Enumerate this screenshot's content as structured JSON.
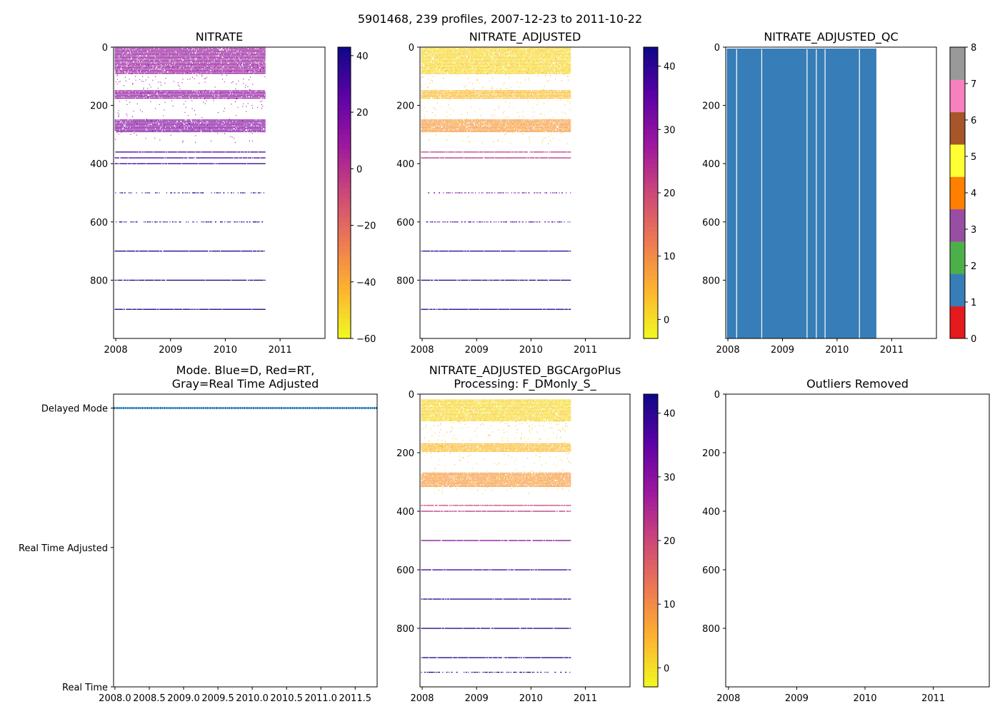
{
  "suptitle": "5901468, 239 profiles, 2007-12-23 to 2011-10-22",
  "colors": {
    "qc_blue": "#377eb8",
    "mode_line": "#1f77b4",
    "qc_palette": [
      "#e41a1c",
      "#377eb8",
      "#4daf4a",
      "#984ea3",
      "#ff7f00",
      "#ffff33",
      "#a65628",
      "#f781bf",
      "#999999"
    ],
    "cmap_plasma_r": [
      "#f0f921",
      "#fdb42f",
      "#ed7953",
      "#cc4778",
      "#9c179e",
      "#5c01a6",
      "#0d0887"
    ]
  },
  "chart_data": [
    {
      "id": "nitrate",
      "type": "heatmap",
      "title": "NITRATE",
      "x_ticks": [
        "2008",
        "2009",
        "2010",
        "2011"
      ],
      "x_tick_values": [
        2008,
        2009,
        2010,
        2011
      ],
      "xlim": [
        2007.96,
        2011.82
      ],
      "ylim": [
        1000,
        0
      ],
      "y_ticks": [
        "0",
        "200",
        "400",
        "600",
        "800"
      ],
      "y_tick_values": [
        0,
        200,
        400,
        600,
        800
      ],
      "data_x_range": [
        2007.98,
        2010.72
      ],
      "colorbar": {
        "label_ticks": [
          "40",
          "20",
          "0",
          "−20",
          "−40",
          "−60"
        ],
        "tick_values": [
          40,
          20,
          0,
          -20,
          -40,
          -60
        ],
        "range": [
          -60,
          43
        ],
        "cmap": "plasma_r"
      },
      "depth_bands": [
        {
          "depths": [
            0,
            5,
            10,
            15,
            20,
            25,
            30,
            35,
            40,
            45,
            50,
            55,
            60,
            65,
            70,
            75,
            80,
            85,
            90
          ],
          "value": 10,
          "jitter": 8
        },
        {
          "depths": [
            150,
            155,
            160,
            165,
            170,
            175
          ],
          "value": 12,
          "jitter": 4
        },
        {
          "depths": [
            250,
            255,
            260,
            265,
            270,
            275,
            280,
            285,
            290
          ],
          "value": 15,
          "jitter": 4
        },
        {
          "depths": [
            360
          ],
          "value": 30,
          "jitter": 3
        },
        {
          "depths": [
            380
          ],
          "value": 32,
          "jitter": 3
        },
        {
          "depths": [
            400
          ],
          "value": 35,
          "jitter": 2
        },
        {
          "depths": [
            500
          ],
          "value": 40,
          "jitter": 1,
          "sparse": true
        },
        {
          "depths": [
            600
          ],
          "value": 41,
          "jitter": 1,
          "sparse": true
        },
        {
          "depths": [
            700
          ],
          "value": 42,
          "jitter": 1
        },
        {
          "depths": [
            800
          ],
          "value": 42,
          "jitter": 1
        },
        {
          "depths": [
            900
          ],
          "value": 43,
          "jitter": 1
        }
      ],
      "scatter": {
        "count": 300,
        "depth_range": [
          60,
          330
        ],
        "value": 10
      }
    },
    {
      "id": "nitrate_adjusted",
      "type": "heatmap",
      "title": "NITRATE_ADJUSTED",
      "x_ticks": [
        "2008",
        "2009",
        "2010",
        "2011"
      ],
      "x_tick_values": [
        2008,
        2009,
        2010,
        2011
      ],
      "xlim": [
        2007.96,
        2011.82
      ],
      "ylim": [
        1000,
        0
      ],
      "y_ticks": [
        "0",
        "200",
        "400",
        "600",
        "800"
      ],
      "y_tick_values": [
        0,
        200,
        400,
        600,
        800
      ],
      "data_x_range": [
        2007.98,
        2010.72
      ],
      "colorbar": {
        "label_ticks": [
          "40",
          "30",
          "20",
          "10",
          "0"
        ],
        "tick_values": [
          40,
          30,
          20,
          10,
          0
        ],
        "range": [
          -3,
          43
        ],
        "cmap": "plasma_r"
      },
      "depth_bands": [
        {
          "depths": [
            0,
            5,
            10,
            15,
            20,
            25,
            30,
            35,
            40,
            45,
            50,
            55,
            60,
            65,
            70,
            75,
            80,
            85,
            90
          ],
          "value": 1,
          "jitter": 3
        },
        {
          "depths": [
            150,
            155,
            160,
            165,
            170,
            175
          ],
          "value": 4,
          "jitter": 3
        },
        {
          "depths": [
            250,
            255,
            260,
            265,
            270,
            275,
            280,
            285,
            290
          ],
          "value": 8,
          "jitter": 3
        },
        {
          "depths": [
            360
          ],
          "value": 21,
          "jitter": 2
        },
        {
          "depths": [
            380
          ],
          "value": 23,
          "jitter": 2
        },
        {
          "depths": [
            500
          ],
          "value": 33,
          "jitter": 1,
          "sparse": true
        },
        {
          "depths": [
            600
          ],
          "value": 37,
          "jitter": 1,
          "sparse": true
        },
        {
          "depths": [
            700
          ],
          "value": 40,
          "jitter": 1
        },
        {
          "depths": [
            800
          ],
          "value": 41,
          "jitter": 1
        },
        {
          "depths": [
            900
          ],
          "value": 42,
          "jitter": 1
        }
      ],
      "scatter": {
        "count": 300,
        "depth_range": [
          60,
          330
        ],
        "value": 3
      }
    },
    {
      "id": "nitrate_adjusted_qc",
      "type": "heatmap",
      "title": "NITRATE_ADJUSTED_QC",
      "x_ticks": [
        "2008",
        "2009",
        "2010",
        "2011"
      ],
      "x_tick_values": [
        2008,
        2009,
        2010,
        2011
      ],
      "xlim": [
        2007.96,
        2011.82
      ],
      "ylim": [
        1000,
        0
      ],
      "y_ticks": [
        "0",
        "200",
        "400",
        "600",
        "800"
      ],
      "y_tick_values": [
        0,
        200,
        400,
        600,
        800
      ],
      "fill_value": 1,
      "fill_x_range": [
        2007.98,
        2010.72
      ],
      "gap_x": [
        2008.16,
        2008.62,
        2009.45,
        2009.62,
        2009.78,
        2010.41
      ],
      "colorbar": {
        "label_ticks": [
          "8",
          "7",
          "6",
          "5",
          "4",
          "3",
          "2",
          "1",
          "0"
        ],
        "tick_values": [
          8,
          7,
          6,
          5,
          4,
          3,
          2,
          1,
          0
        ],
        "range": [
          0,
          8
        ],
        "cmap": "qc"
      }
    },
    {
      "id": "mode",
      "type": "line",
      "title_lines": [
        "Mode. Blue=D, Red=RT,",
        "Gray=Real Time Adjusted"
      ],
      "y_ticks": [
        "Delayed Mode",
        "Real Time Adjusted",
        "Real Time"
      ],
      "y_tick_values": [
        3,
        2,
        1
      ],
      "ylim": [
        1,
        3.1
      ],
      "x_ticks": [
        "2008.0",
        "2008.5",
        "2009.0",
        "2009.5",
        "2010.0",
        "2010.5",
        "2011.0",
        "2011.5"
      ],
      "x_tick_values": [
        2008.0,
        2008.5,
        2009.0,
        2009.5,
        2010.0,
        2010.5,
        2011.0,
        2011.5
      ],
      "xlim": [
        2007.98,
        2011.82
      ],
      "series": [
        {
          "name": "Delayed Mode",
          "x_range": [
            2007.98,
            2011.82
          ],
          "y": 3
        }
      ]
    },
    {
      "id": "nitrate_bgc",
      "type": "heatmap",
      "title_lines": [
        "NITRATE_ADJUSTED_BGCArgoPlus",
        "Processing: F_DMonly_S_"
      ],
      "x_ticks": [
        "2008",
        "2009",
        "2010",
        "2011"
      ],
      "x_tick_values": [
        2008,
        2009,
        2010,
        2011
      ],
      "xlim": [
        2007.96,
        2011.82
      ],
      "ylim": [
        1000,
        0
      ],
      "y_ticks": [
        "0",
        "200",
        "400",
        "600",
        "800"
      ],
      "y_tick_values": [
        0,
        200,
        400,
        600,
        800
      ],
      "data_x_range": [
        2007.98,
        2010.72
      ],
      "colorbar": {
        "label_ticks": [
          "40",
          "30",
          "20",
          "10",
          "0"
        ],
        "tick_values": [
          40,
          30,
          20,
          10,
          0
        ],
        "range": [
          -3,
          43
        ],
        "cmap": "plasma_r"
      },
      "depth_bands": [
        {
          "depths": [
            20,
            25,
            30,
            35,
            40,
            45,
            50,
            55,
            60,
            65,
            70,
            75,
            80,
            85,
            90
          ],
          "value": 1,
          "jitter": 3
        },
        {
          "depths": [
            170,
            175,
            180,
            185,
            190,
            195
          ],
          "value": 4,
          "jitter": 3
        },
        {
          "depths": [
            270,
            275,
            280,
            285,
            290,
            295,
            300,
            305,
            310,
            315
          ],
          "value": 8,
          "jitter": 3
        },
        {
          "depths": [
            380
          ],
          "value": 20,
          "jitter": 2
        },
        {
          "depths": [
            400
          ],
          "value": 22,
          "jitter": 2
        },
        {
          "depths": [
            500
          ],
          "value": 30,
          "jitter": 1
        },
        {
          "depths": [
            600
          ],
          "value": 38,
          "jitter": 1
        },
        {
          "depths": [
            700
          ],
          "value": 40,
          "jitter": 1
        },
        {
          "depths": [
            800
          ],
          "value": 41,
          "jitter": 1
        },
        {
          "depths": [
            900
          ],
          "value": 42,
          "jitter": 1
        },
        {
          "depths": [
            950
          ],
          "value": 43,
          "jitter": 1,
          "sparse": true
        }
      ],
      "scatter": {
        "count": 300,
        "depth_range": [
          90,
          340
        ],
        "value": 3
      }
    },
    {
      "id": "outliers",
      "type": "scatter",
      "title": "Outliers Removed",
      "x_ticks": [
        "2008",
        "2009",
        "2010",
        "2011"
      ],
      "x_tick_values": [
        2008,
        2009,
        2010,
        2011
      ],
      "xlim": [
        2007.96,
        2011.82
      ],
      "ylim": [
        1000,
        0
      ],
      "y_ticks": [
        "0",
        "200",
        "400",
        "600",
        "800"
      ],
      "y_tick_values": [
        0,
        200,
        400,
        600,
        800
      ],
      "points": []
    }
  ]
}
